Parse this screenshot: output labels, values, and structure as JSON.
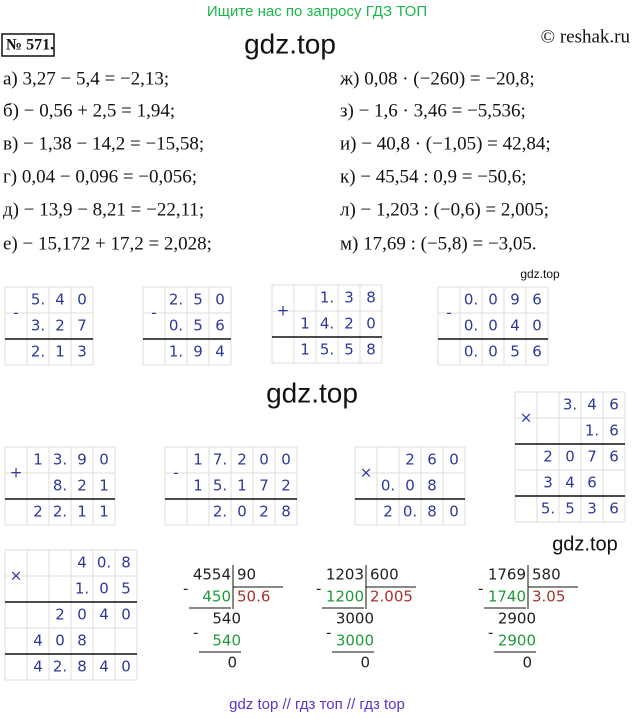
{
  "banner": "Ищите нас по запросу ГДЗ ТОП",
  "number": "№ 571.",
  "site": "© reshak.ru",
  "watermarks": [
    "gdz.top",
    "gdz.top",
    "gdz.top",
    "gdz.top"
  ],
  "equations": {
    "left": [
      "а) 3,27 − 5,4 = −2,13;",
      "б) − 0,56 + 2,5 = 1,94;",
      "в) − 1,38 − 14,2 = −15,58;",
      "г) 0,04 − 0,096 = −0,056;",
      "д) − 13,9 − 8,21 = −22,11;",
      "е) − 15,172 + 17,2 = 2,028;"
    ],
    "right": [
      "ж) 0,08 · (−260) = −20,8;",
      "з) − 1,6 · 3,46 = −5,536;",
      "и) − 40,8 · (−1,05) = 42,84;",
      "к) − 45,54 : 0,9 = −50,6;",
      "л) − 1,203 : (−0,6) = 2,005;",
      "м) 17,69 : (−5,8) = −3,05."
    ]
  },
  "columns": [
    {
      "sign": "-",
      "rows": [
        [
          "5.",
          "4",
          "0"
        ],
        [
          "3.",
          "2",
          "7"
        ],
        [
          "2.",
          "1",
          "3"
        ]
      ]
    },
    {
      "sign": "-",
      "rows": [
        [
          "2.",
          "5",
          "0"
        ],
        [
          "0.",
          "5",
          "6"
        ],
        [
          "1.",
          "9",
          "4"
        ]
      ]
    },
    {
      "sign": "+",
      "rows": [
        [
          null,
          "1.",
          "3",
          "8"
        ],
        [
          "1",
          "4.",
          "2",
          "0"
        ],
        [
          "1",
          "5.",
          "5",
          "8"
        ]
      ]
    },
    {
      "sign": "-",
      "rows": [
        [
          "0.",
          "0",
          "9",
          "6"
        ],
        [
          "0.",
          "0",
          "4",
          "0"
        ],
        [
          "0.",
          "0",
          "5",
          "6"
        ]
      ]
    },
    {
      "sign": "+",
      "rows": [
        [
          "1",
          "3.",
          "9",
          "0"
        ],
        [
          null,
          "8.",
          "2",
          "1"
        ],
        [
          "2",
          "2.",
          "1",
          "1"
        ]
      ]
    },
    {
      "sign": "-",
      "rows": [
        [
          "1",
          "7.",
          "2",
          "0",
          "0"
        ],
        [
          "1",
          "5.",
          "1",
          "7",
          "2"
        ],
        [
          null,
          "2.",
          "0",
          "2",
          "8"
        ]
      ]
    },
    {
      "sign": "×",
      "rows": [
        [
          null,
          "2",
          "6",
          "0"
        ],
        [
          "0.",
          "0",
          "8",
          null
        ],
        [
          "2",
          "0.",
          "8",
          "0"
        ]
      ]
    },
    {
      "sign": "×",
      "rows": [
        [
          null,
          "3.",
          "4",
          "6"
        ],
        [
          null,
          null,
          "1.",
          "6"
        ],
        [
          "2",
          "0",
          "7",
          "6"
        ],
        [
          "3",
          "4",
          "6",
          null
        ],
        [
          "5.",
          "5",
          "3",
          "6"
        ]
      ]
    },
    {
      "sign": "×",
      "rows": [
        [
          null,
          null,
          "4",
          "0.",
          "8"
        ],
        [
          null,
          null,
          "1.",
          "0",
          "5"
        ],
        [
          null,
          "2",
          "0",
          "4",
          "0"
        ],
        [
          "4",
          "0",
          "8",
          null,
          null
        ],
        [
          "4",
          "2.",
          "8",
          "4",
          "0"
        ]
      ]
    }
  ],
  "divisions": [
    {
      "sign": "-",
      "dividend": "4554",
      "divisor": "90",
      "quotient": "50.6",
      "steps": [
        "450",
        "540",
        "540"
      ],
      "remainder": "0"
    },
    {
      "sign": "-",
      "dividend": "1203",
      "divisor": "600",
      "quotient": "2.005",
      "steps": [
        "1200",
        "3000",
        "3000"
      ],
      "remainder": "0"
    },
    {
      "sign": "-",
      "dividend": "1769",
      "divisor": "580",
      "quotient": "3.05",
      "steps": [
        "1740",
        "2900",
        "2900"
      ],
      "remainder": "0"
    }
  ],
  "footer": "gdz top  //  гдз топ  //  гдз top"
}
